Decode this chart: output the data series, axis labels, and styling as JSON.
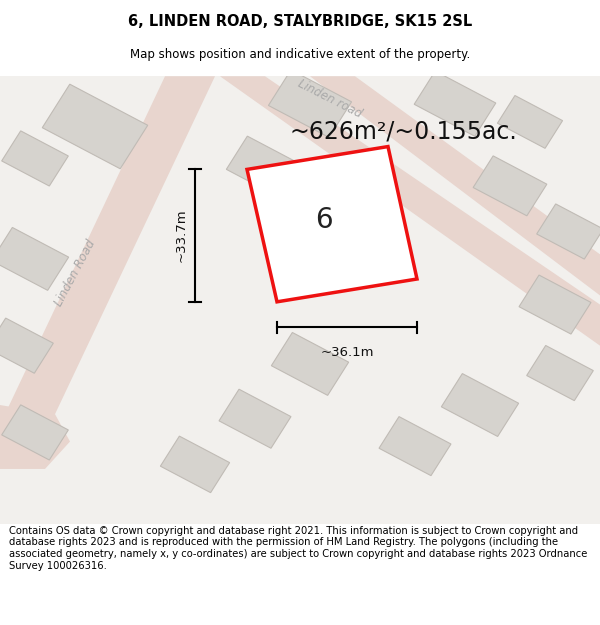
{
  "title": "6, LINDEN ROAD, STALYBRIDGE, SK15 2SL",
  "subtitle": "Map shows position and indicative extent of the property.",
  "footer": "Contains OS data © Crown copyright and database right 2021. This information is subject to Crown copyright and database rights 2023 and is reproduced with the permission of HM Land Registry. The polygons (including the associated geometry, namely x, y co-ordinates) are subject to Crown copyright and database rights 2023 Ordnance Survey 100026316.",
  "area_label": "~626m²/~0.155ac.",
  "width_label": "~36.1m",
  "height_label": "~33.7m",
  "house_number": "6",
  "map_bg": "#f2f0ed",
  "road_color": "#e8d5ce",
  "road_edge": "#ddc8c0",
  "building_color": "#d6d3ce",
  "building_edge": "#c0bbb5",
  "plot_fill": "#ffffff",
  "plot_edge": "#ee1111",
  "dim_color": "#111111",
  "road_label_color": "#aaaaaa",
  "title_fontsize": 10.5,
  "subtitle_fontsize": 8.5,
  "footer_fontsize": 7.2,
  "area_fontsize": 17,
  "dim_fontsize": 9.5,
  "housenumber_fontsize": 20,
  "road_label_fontsize": 8.5
}
